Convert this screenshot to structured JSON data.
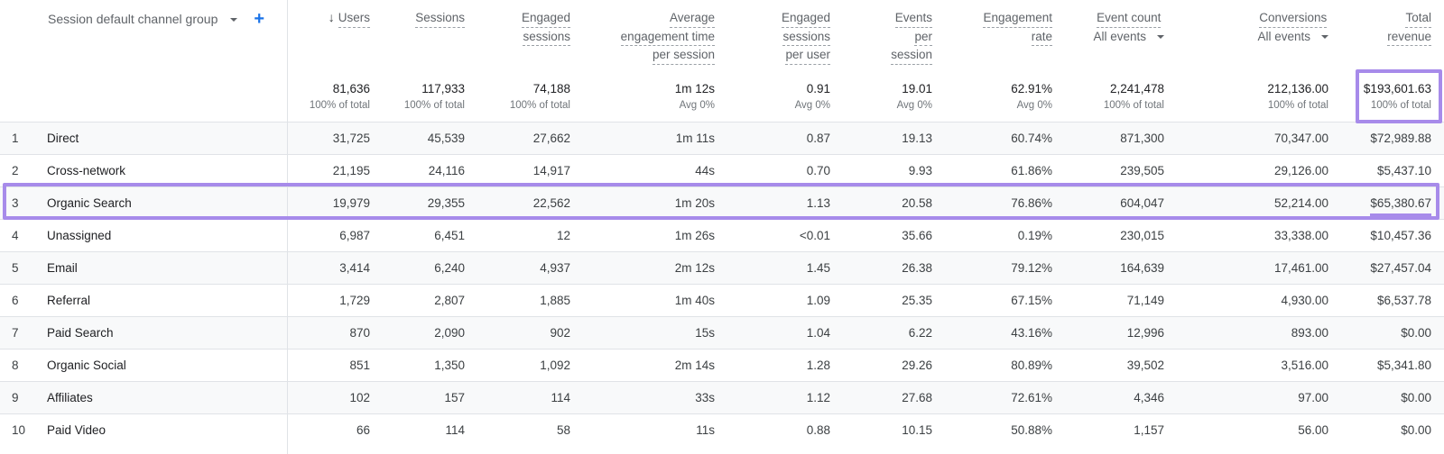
{
  "dimension": {
    "label": "Session default channel group",
    "add_label": "+"
  },
  "columns": [
    {
      "key": "users",
      "lines": [
        "Users"
      ],
      "sort": "descending",
      "sort_icon": "↓"
    },
    {
      "key": "sessions",
      "lines": [
        "Sessions"
      ]
    },
    {
      "key": "engaged_sessions",
      "lines": [
        "Engaged",
        "sessions"
      ]
    },
    {
      "key": "avg_engagement_time",
      "lines": [
        "Average",
        "engagement time",
        "per session"
      ]
    },
    {
      "key": "engaged_per_user",
      "lines": [
        "Engaged",
        "sessions",
        "per user"
      ]
    },
    {
      "key": "events_per_session",
      "lines": [
        "Events",
        "per",
        "session"
      ]
    },
    {
      "key": "engagement_rate",
      "lines": [
        "Engagement",
        "rate"
      ]
    },
    {
      "key": "event_count",
      "lines": [
        "Event count"
      ],
      "selector": "All events"
    },
    {
      "key": "conversions",
      "lines": [
        "Conversions"
      ],
      "selector": "All events"
    },
    {
      "key": "total_revenue",
      "lines": [
        "Total",
        "revenue"
      ]
    }
  ],
  "totals": [
    {
      "value": "81,636",
      "sub": "100% of total"
    },
    {
      "value": "117,933",
      "sub": "100% of total"
    },
    {
      "value": "74,188",
      "sub": "100% of total"
    },
    {
      "value": "1m 12s",
      "sub": "Avg 0%"
    },
    {
      "value": "0.91",
      "sub": "Avg 0%"
    },
    {
      "value": "19.01",
      "sub": "Avg 0%"
    },
    {
      "value": "62.91%",
      "sub": "Avg 0%"
    },
    {
      "value": "2,241,478",
      "sub": "100% of total"
    },
    {
      "value": "212,136.00",
      "sub": "100% of total"
    },
    {
      "value": "$193,601.63",
      "sub": "100% of total"
    }
  ],
  "rows": [
    {
      "index": "1",
      "channel": "Direct",
      "values": [
        "31,725",
        "45,539",
        "27,662",
        "1m 11s",
        "0.87",
        "19.13",
        "60.74%",
        "871,300",
        "70,347.00",
        "$72,989.88"
      ]
    },
    {
      "index": "2",
      "channel": "Cross-network",
      "values": [
        "21,195",
        "24,116",
        "14,917",
        "44s",
        "0.70",
        "9.93",
        "61.86%",
        "239,505",
        "29,126.00",
        "$5,437.10"
      ]
    },
    {
      "index": "3",
      "channel": "Organic Search",
      "values": [
        "19,979",
        "29,355",
        "22,562",
        "1m 20s",
        "1.13",
        "20.58",
        "76.86%",
        "604,047",
        "52,214.00",
        "$65,380.67"
      ]
    },
    {
      "index": "4",
      "channel": "Unassigned",
      "values": [
        "6,987",
        "6,451",
        "12",
        "1m 26s",
        "<0.01",
        "35.66",
        "0.19%",
        "230,015",
        "33,338.00",
        "$10,457.36"
      ]
    },
    {
      "index": "5",
      "channel": "Email",
      "values": [
        "3,414",
        "6,240",
        "4,937",
        "2m 12s",
        "1.45",
        "26.38",
        "79.12%",
        "164,639",
        "17,461.00",
        "$27,457.04"
      ]
    },
    {
      "index": "6",
      "channel": "Referral",
      "values": [
        "1,729",
        "2,807",
        "1,885",
        "1m 40s",
        "1.09",
        "25.35",
        "67.15%",
        "71,149",
        "4,930.00",
        "$6,537.78"
      ]
    },
    {
      "index": "7",
      "channel": "Paid Search",
      "values": [
        "870",
        "2,090",
        "902",
        "15s",
        "1.04",
        "6.22",
        "43.16%",
        "12,996",
        "893.00",
        "$0.00"
      ]
    },
    {
      "index": "8",
      "channel": "Organic Social",
      "values": [
        "851",
        "1,350",
        "1,092",
        "2m 14s",
        "1.28",
        "29.26",
        "80.89%",
        "39,502",
        "3,516.00",
        "$5,341.80"
      ]
    },
    {
      "index": "9",
      "channel": "Affiliates",
      "values": [
        "102",
        "157",
        "114",
        "33s",
        "1.12",
        "27.68",
        "72.61%",
        "4,346",
        "97.00",
        "$0.00"
      ]
    },
    {
      "index": "10",
      "channel": "Paid Video",
      "values": [
        "66",
        "114",
        "58",
        "11s",
        "0.88",
        "10.15",
        "50.88%",
        "1,157",
        "56.00",
        "$0.00"
      ]
    }
  ],
  "highlight": {
    "row_index": "3",
    "total_column": "total_revenue",
    "color": "#a78bea"
  },
  "colors": {
    "accent_blue": "#1a73e8",
    "highlight_purple": "#a78bea",
    "alt_row": "#f8f9fa",
    "border": "#e0e3e7"
  }
}
